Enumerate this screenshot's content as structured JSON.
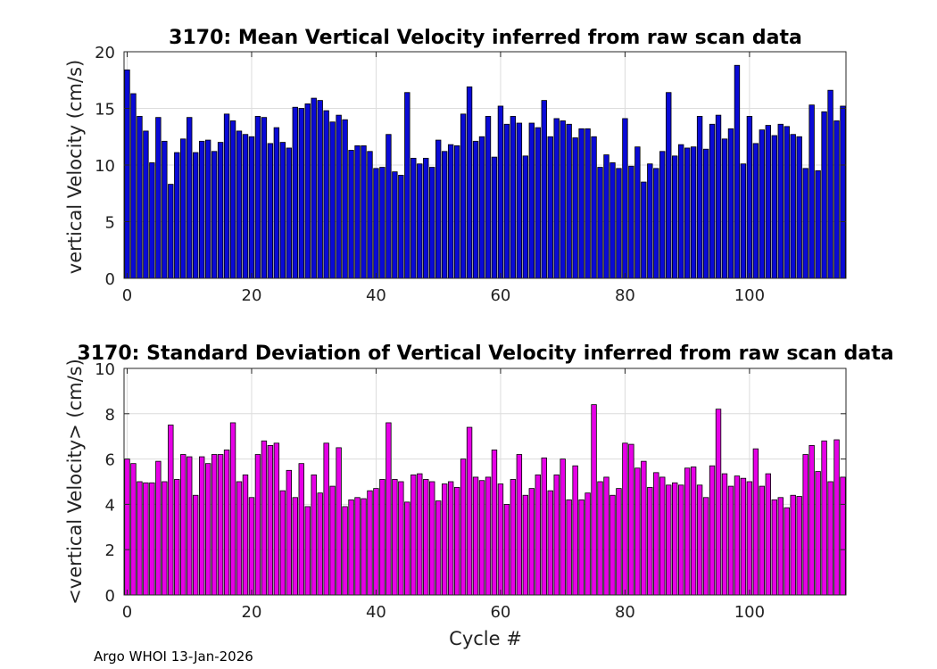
{
  "colors": {
    "mean_bars": "#0a0ad6",
    "std_bars": "#e600e6",
    "grid": "#dcdcdc",
    "axis": "#262626"
  },
  "chart_data": [
    {
      "type": "bar",
      "title": "3170: Mean Vertical Velocity inferred from raw scan data",
      "xlabel": "",
      "ylabel": "vertical Velocity (cm/s)",
      "xlim": [
        -0.5,
        115.5
      ],
      "ylim": [
        0,
        20
      ],
      "xticks": [
        0,
        20,
        40,
        60,
        80,
        100
      ],
      "yticks": [
        0,
        5,
        10,
        15,
        20
      ],
      "grid": true,
      "x": [
        0,
        1,
        2,
        3,
        4,
        5,
        6,
        7,
        8,
        9,
        10,
        11,
        12,
        13,
        14,
        15,
        16,
        17,
        18,
        19,
        20,
        21,
        22,
        23,
        24,
        25,
        26,
        27,
        28,
        29,
        30,
        31,
        32,
        33,
        34,
        35,
        36,
        37,
        38,
        39,
        40,
        41,
        42,
        43,
        44,
        45,
        46,
        47,
        48,
        49,
        50,
        51,
        52,
        53,
        54,
        55,
        56,
        57,
        58,
        59,
        60,
        61,
        62,
        63,
        64,
        65,
        66,
        67,
        68,
        69,
        70,
        71,
        72,
        73,
        74,
        75,
        76,
        77,
        78,
        79,
        80,
        81,
        82,
        83,
        84,
        85,
        86,
        87,
        88,
        89,
        90,
        91,
        92,
        93,
        94,
        95,
        96,
        97,
        98,
        99,
        100,
        101,
        102,
        103,
        104,
        105,
        106,
        107,
        108,
        109,
        110,
        111,
        112,
        113,
        114,
        115
      ],
      "values": [
        18.4,
        16.3,
        14.3,
        13.0,
        10.2,
        14.2,
        12.1,
        8.3,
        11.1,
        12.3,
        14.2,
        11.1,
        12.1,
        12.2,
        11.2,
        12.0,
        14.5,
        13.9,
        13.0,
        12.7,
        12.5,
        14.3,
        14.2,
        11.9,
        13.3,
        12.0,
        11.5,
        15.1,
        15.0,
        15.4,
        15.9,
        15.7,
        14.8,
        13.8,
        14.4,
        14.0,
        11.3,
        11.7,
        11.7,
        11.2,
        9.7,
        9.8,
        12.7,
        9.4,
        9.1,
        16.4,
        10.6,
        10.1,
        10.6,
        9.8,
        12.2,
        11.2,
        11.8,
        11.7,
        14.5,
        16.9,
        12.1,
        12.5,
        14.3,
        10.7,
        15.2,
        13.6,
        14.3,
        13.7,
        10.8,
        13.7,
        13.3,
        15.7,
        12.5,
        14.1,
        13.9,
        13.6,
        12.4,
        13.2,
        13.2,
        12.5,
        9.8,
        10.9,
        10.2,
        9.7,
        14.1,
        9.9,
        11.6,
        8.5,
        10.1,
        9.7,
        11.2,
        16.4,
        10.8,
        11.8,
        11.5,
        11.6,
        14.3,
        11.4,
        13.6,
        14.4,
        12.3,
        13.2,
        18.8,
        10.1,
        14.3,
        11.9,
        13.1,
        13.5,
        12.6,
        13.6,
        13.4,
        12.7,
        12.5,
        9.7,
        15.3,
        9.5,
        14.7,
        16.6,
        13.9,
        15.2
      ]
    },
    {
      "type": "bar",
      "title": "3170: Standard Deviation of Vertical Velocity inferred from raw scan data",
      "xlabel": "Cycle #",
      "ylabel": "<vertical Velocity> (cm/s)",
      "xlim": [
        -0.5,
        115.5
      ],
      "ylim": [
        0,
        10
      ],
      "xticks": [
        0,
        20,
        40,
        60,
        80,
        100
      ],
      "yticks": [
        0,
        2,
        4,
        6,
        8,
        10
      ],
      "grid": true,
      "x": [
        0,
        1,
        2,
        3,
        4,
        5,
        6,
        7,
        8,
        9,
        10,
        11,
        12,
        13,
        14,
        15,
        16,
        17,
        18,
        19,
        20,
        21,
        22,
        23,
        24,
        25,
        26,
        27,
        28,
        29,
        30,
        31,
        32,
        33,
        34,
        35,
        36,
        37,
        38,
        39,
        40,
        41,
        42,
        43,
        44,
        45,
        46,
        47,
        48,
        49,
        50,
        51,
        52,
        53,
        54,
        55,
        56,
        57,
        58,
        59,
        60,
        61,
        62,
        63,
        64,
        65,
        66,
        67,
        68,
        69,
        70,
        71,
        72,
        73,
        74,
        75,
        76,
        77,
        78,
        79,
        80,
        81,
        82,
        83,
        84,
        85,
        86,
        87,
        88,
        89,
        90,
        91,
        92,
        93,
        94,
        95,
        96,
        97,
        98,
        99,
        100,
        101,
        102,
        103,
        104,
        105,
        106,
        107,
        108,
        109,
        110,
        111,
        112,
        113,
        114,
        115
      ],
      "values": [
        6.0,
        5.8,
        5.0,
        4.95,
        4.95,
        5.9,
        5.0,
        7.5,
        5.1,
        6.2,
        6.1,
        4.4,
        6.1,
        5.8,
        6.2,
        6.2,
        6.4,
        7.6,
        5.0,
        5.3,
        4.3,
        6.2,
        6.8,
        6.6,
        6.7,
        4.6,
        5.5,
        4.3,
        5.8,
        3.9,
        5.3,
        4.5,
        6.7,
        4.8,
        6.5,
        3.9,
        4.2,
        4.3,
        4.25,
        4.6,
        4.7,
        5.1,
        7.6,
        5.1,
        5.0,
        4.1,
        5.3,
        5.35,
        5.1,
        5.0,
        4.15,
        4.9,
        5.0,
        4.75,
        6.0,
        7.4,
        5.2,
        5.05,
        5.2,
        6.4,
        4.9,
        4.0,
        5.1,
        6.2,
        4.4,
        4.7,
        5.3,
        6.05,
        4.6,
        5.3,
        6.0,
        4.2,
        5.7,
        4.2,
        4.5,
        8.4,
        5.0,
        5.2,
        4.4,
        4.7,
        6.7,
        6.65,
        5.6,
        5.9,
        4.75,
        5.4,
        5.2,
        4.85,
        4.95,
        4.85,
        5.6,
        5.65,
        4.85,
        4.3,
        5.7,
        8.2,
        5.35,
        4.8,
        5.25,
        5.15,
        5.0,
        6.45,
        4.8,
        5.35,
        4.2,
        4.3,
        3.85,
        4.4,
        4.35,
        6.2,
        6.6,
        5.45,
        6.8,
        5.0,
        6.85,
        5.2
      ]
    }
  ],
  "footer": {
    "text": "Argo WHOI 13-Jan-2026"
  }
}
